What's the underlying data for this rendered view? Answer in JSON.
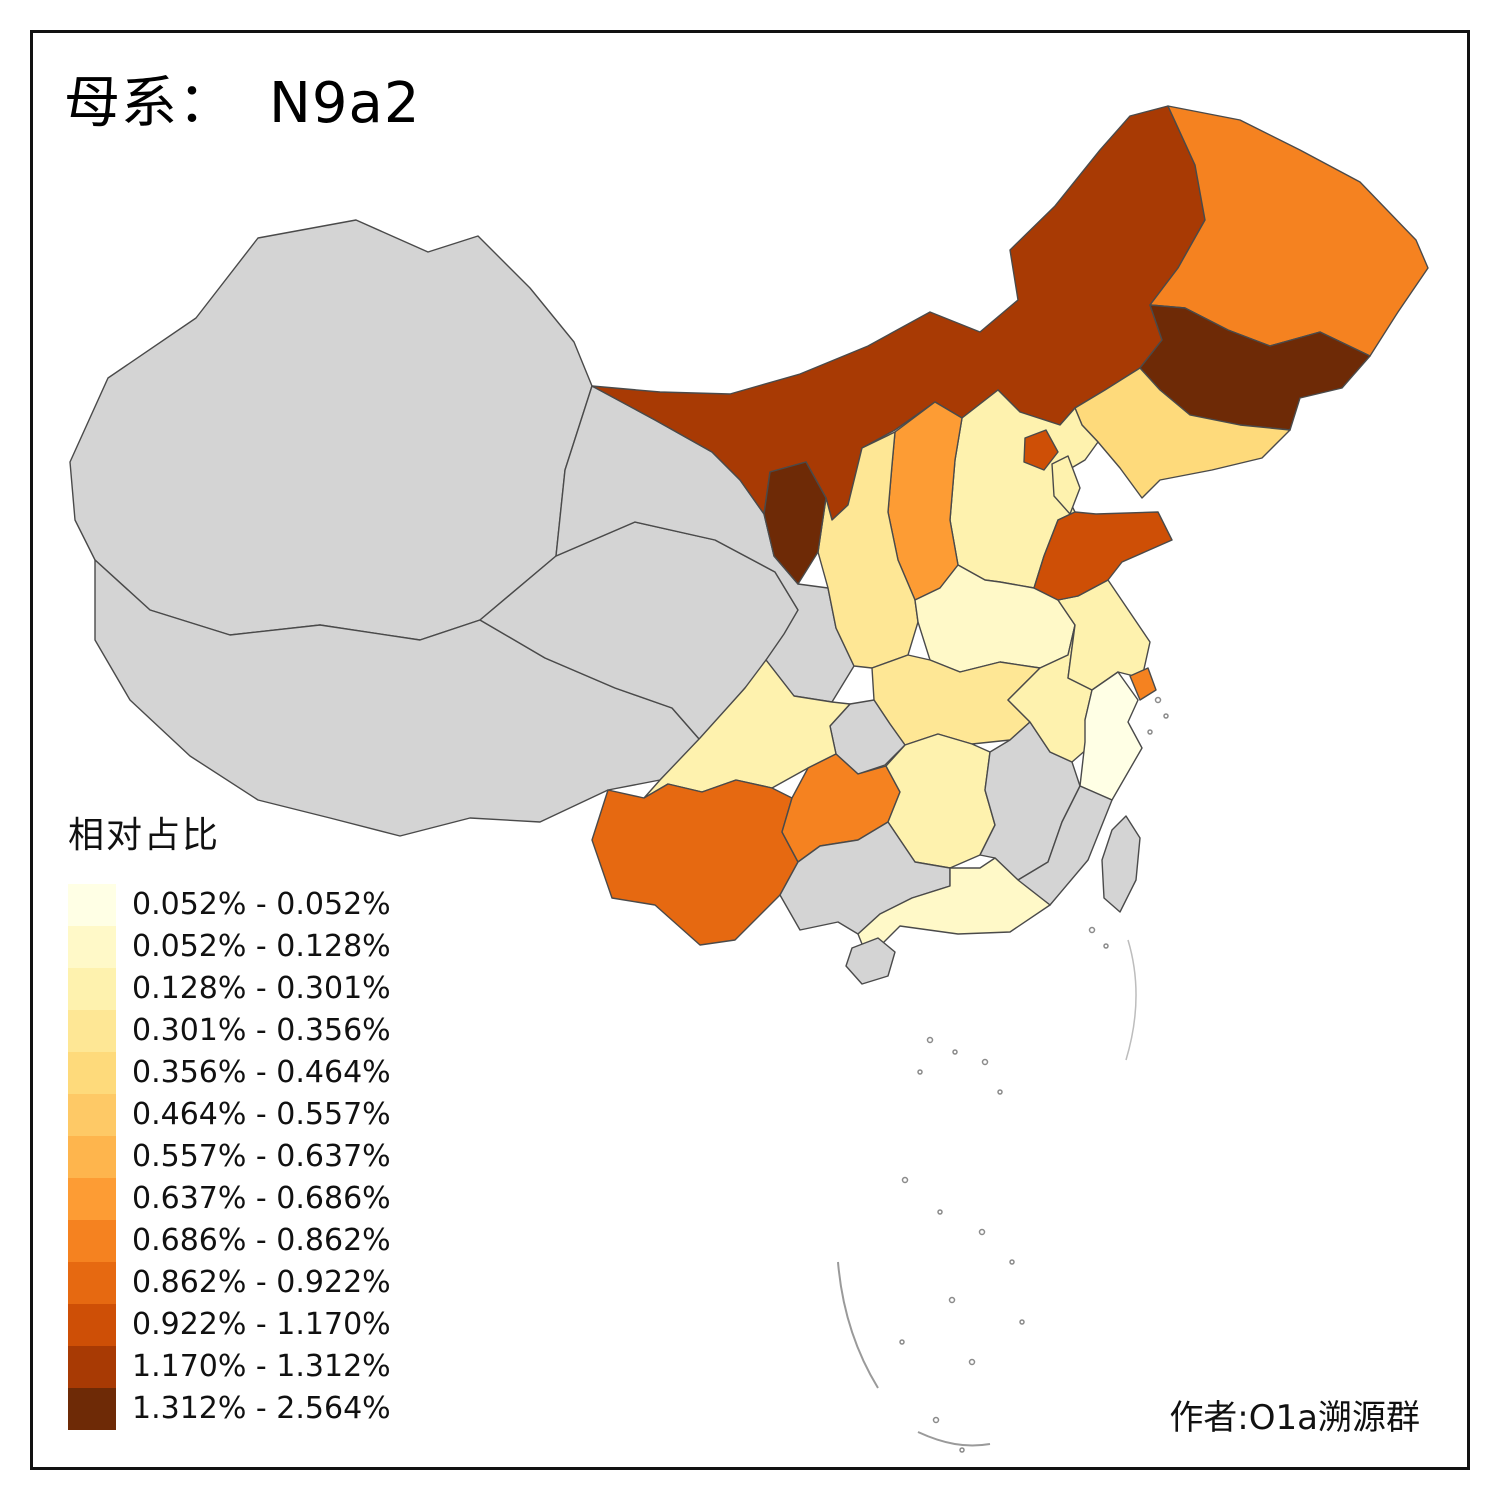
{
  "title": {
    "prefix": "母系：",
    "value": "N9a2"
  },
  "legend": {
    "title": "相对占比",
    "bins": [
      {
        "label": "0.052% - 0.052%",
        "color": "#FFFFE5"
      },
      {
        "label": "0.052% - 0.128%",
        "color": "#FFF9C8"
      },
      {
        "label": "0.128% - 0.301%",
        "color": "#FEF2AE"
      },
      {
        "label": "0.301% - 0.356%",
        "color": "#FEE795"
      },
      {
        "label": "0.356% - 0.464%",
        "color": "#FEDA7B"
      },
      {
        "label": "0.464% - 0.557%",
        "color": "#FEC966"
      },
      {
        "label": "0.557% - 0.637%",
        "color": "#FEB54D"
      },
      {
        "label": "0.637% - 0.686%",
        "color": "#FD9C34"
      },
      {
        "label": "0.686% - 0.862%",
        "color": "#F58220"
      },
      {
        "label": "0.862% - 0.922%",
        "color": "#E66911"
      },
      {
        "label": "0.922% - 1.170%",
        "color": "#CE4F06"
      },
      {
        "label": "1.170% - 1.312%",
        "color": "#A83A04"
      },
      {
        "label": "1.312% - 2.564%",
        "color": "#6E2A06"
      }
    ]
  },
  "credit": "作者:O1a溯源群",
  "map": {
    "no_data_color": "#D4D4D4",
    "border_color": "#4A4A4A",
    "regions": [
      {
        "id": "xinjiang",
        "color": "#D4D4D4",
        "bin_label": null
      },
      {
        "id": "tibet",
        "color": "#D4D4D4",
        "bin_label": null
      },
      {
        "id": "qinghai",
        "color": "#D4D4D4",
        "bin_label": null
      },
      {
        "id": "gansu",
        "color": "#D4D4D4",
        "bin_label": null
      },
      {
        "id": "inner-mongolia",
        "color": "#A83A04",
        "bin_label": "1.170% - 1.312%"
      },
      {
        "id": "heilongjiang",
        "color": "#F58220",
        "bin_label": "0.686% - 0.862%"
      },
      {
        "id": "jilin",
        "color": "#6E2A06",
        "bin_label": "1.312% - 2.564%"
      },
      {
        "id": "liaoning",
        "color": "#FEDA7B",
        "bin_label": "0.356% - 0.464%"
      },
      {
        "id": "hebei",
        "color": "#FEF2AE",
        "bin_label": "0.128% - 0.301%"
      },
      {
        "id": "shanxi",
        "color": "#FD9C34",
        "bin_label": "0.637% - 0.686%"
      },
      {
        "id": "shaanxi",
        "color": "#FEE795",
        "bin_label": "0.301% - 0.356%"
      },
      {
        "id": "henan",
        "color": "#FFF9C8",
        "bin_label": "0.052% - 0.128%"
      },
      {
        "id": "hubei",
        "color": "#FEE795",
        "bin_label": "0.301% - 0.356%"
      },
      {
        "id": "chongqing",
        "color": "#D4D4D4",
        "bin_label": null
      },
      {
        "id": "sichuan",
        "color": "#FEF2AE",
        "bin_label": "0.128% - 0.301%"
      },
      {
        "id": "yunnan",
        "color": "#E66911",
        "bin_label": "0.862% - 0.922%"
      },
      {
        "id": "guizhou",
        "color": "#F58220",
        "bin_label": "0.686% - 0.862%"
      },
      {
        "id": "hunan",
        "color": "#FEF2AE",
        "bin_label": "0.128% - 0.301%"
      },
      {
        "id": "jiangxi",
        "color": "#D4D4D4",
        "bin_label": null
      },
      {
        "id": "anhui",
        "color": "#FEF2AE",
        "bin_label": "0.128% - 0.301%"
      },
      {
        "id": "jiangsu",
        "color": "#FEF2AE",
        "bin_label": "0.128% - 0.301%"
      },
      {
        "id": "shandong",
        "color": "#CE4F06",
        "bin_label": "0.922% - 1.170%"
      },
      {
        "id": "zhejiang",
        "color": "#FFFFE5",
        "bin_label": "0.052% - 0.052%"
      },
      {
        "id": "fujian",
        "color": "#D4D4D4",
        "bin_label": null
      },
      {
        "id": "taiwan",
        "color": "#D4D4D4",
        "bin_label": null
      },
      {
        "id": "guangxi",
        "color": "#D4D4D4",
        "bin_label": null
      },
      {
        "id": "guangdong",
        "color": "#FFF9C8",
        "bin_label": "0.052% - 0.128%"
      },
      {
        "id": "hainan",
        "color": "#D4D4D4",
        "bin_label": null
      },
      {
        "id": "ningxia",
        "color": "#6E2A06",
        "bin_label": "1.312% - 2.564%"
      },
      {
        "id": "beijing",
        "color": "#CE4F06",
        "bin_label": "0.922% - 1.170%"
      },
      {
        "id": "tianjin",
        "color": "#FEF2AE",
        "bin_label": "0.128% - 0.301%"
      },
      {
        "id": "shanghai",
        "color": "#F58220",
        "bin_label": "0.686% - 0.862%"
      }
    ]
  }
}
